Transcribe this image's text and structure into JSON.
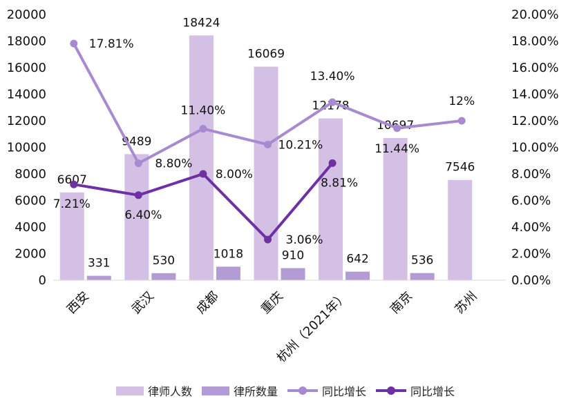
{
  "chart_data": {
    "type": "bar+line",
    "categories": [
      "西安",
      "武汉",
      "成都",
      "重庆",
      "杭州（2021年）",
      "南京",
      "苏州"
    ],
    "series": [
      {
        "name": "律师人数",
        "kind": "bar",
        "axis": "left",
        "color": "#d3c0e4",
        "values": [
          6607,
          9489,
          18424,
          16069,
          12178,
          10697,
          7546
        ],
        "labels": [
          "6607",
          "9489",
          "18424",
          "16069",
          "12178",
          "10697",
          "7546"
        ]
      },
      {
        "name": "律所数量",
        "kind": "bar",
        "axis": "left",
        "color": "#b39bd4",
        "values": [
          331,
          530,
          1018,
          910,
          642,
          536,
          null
        ],
        "labels": [
          "331",
          "530",
          "1018",
          "910",
          "642",
          "536",
          ""
        ]
      },
      {
        "name": "同比增长",
        "kind": "line",
        "axis": "right",
        "color": "#a88ad0",
        "values": [
          17.81,
          8.8,
          11.4,
          10.21,
          13.4,
          11.44,
          12
        ],
        "labels": [
          "17.81%",
          "8.80%",
          "11.40%",
          "10.21%",
          "13.40%",
          "11.44%",
          "12%"
        ]
      },
      {
        "name": "同比增长",
        "kind": "line",
        "axis": "right",
        "color": "#6e30a3",
        "values": [
          7.21,
          6.4,
          8.0,
          3.06,
          8.81,
          null,
          null
        ],
        "labels": [
          "7.21%",
          "6.40%",
          "8.00%",
          "3.06%",
          "8.81%",
          "",
          ""
        ]
      }
    ],
    "y_left": {
      "min": 0,
      "max": 20000,
      "step": 2000,
      "ticks": [
        "0",
        "2000",
        "4000",
        "6000",
        "8000",
        "10000",
        "12000",
        "14000",
        "16000",
        "18000",
        "20000"
      ]
    },
    "y_right": {
      "min": 0,
      "max": 20,
      "step": 2,
      "ticks": [
        "0.00%",
        "2.00%",
        "4.00%",
        "6.00%",
        "8.00%",
        "10.00%",
        "12.00%",
        "14.00%",
        "16.00%",
        "18.00%",
        "20.00%"
      ]
    },
    "legend": [
      "律师人数",
      "律所数量",
      "同比增长",
      "同比增长"
    ],
    "legend_position": "bottom",
    "grid": false
  }
}
